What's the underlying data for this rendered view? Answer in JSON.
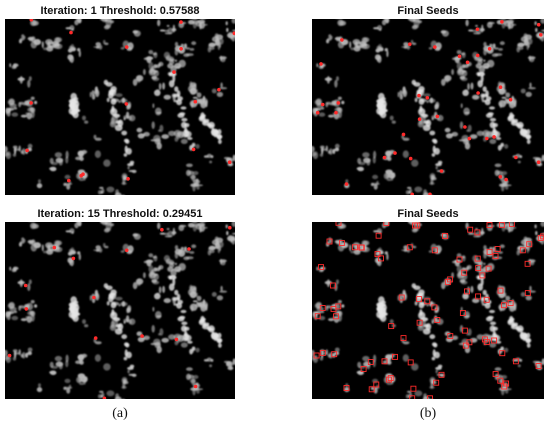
{
  "figure": {
    "panels": [
      {
        "title": "Iteration: 1 Threshold: 0.57588",
        "seed_style": "dots",
        "density": "low"
      },
      {
        "title": "Final Seeds",
        "seed_style": "dots",
        "density": "medium"
      },
      {
        "title": "Iteration: 15 Threshold: 0.29451",
        "seed_style": "dots",
        "density": "low"
      },
      {
        "title": "Final Seeds",
        "seed_style": "boxes",
        "density": "high"
      }
    ],
    "captions": {
      "left": "(a)",
      "right": "(b)"
    },
    "colors": {
      "background": "#000000",
      "cells": "#bdbdbd",
      "seeds": "#ff2a2a"
    }
  }
}
